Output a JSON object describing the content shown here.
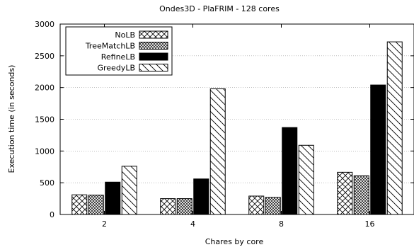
{
  "chart_data": {
    "type": "bar",
    "title": "Ondes3D - PlaFRIM - 128 cores",
    "xlabel": "Chares by core",
    "ylabel": "Execution time (in seconds)",
    "categories": [
      "2",
      "4",
      "8",
      "16"
    ],
    "ylim": [
      0,
      3000
    ],
    "yticks": [
      0,
      500,
      1000,
      1500,
      2000,
      2500,
      3000
    ],
    "grid": "horizontal dotted",
    "legend_position": "top-left",
    "series": [
      {
        "name": "NoLB",
        "pattern": "crosshatch",
        "values": [
          310,
          250,
          290,
          665
        ]
      },
      {
        "name": "TreeMatchLB",
        "pattern": "dense-crosshatch",
        "values": [
          305,
          250,
          270,
          610
        ]
      },
      {
        "name": "RefineLB",
        "pattern": "solid",
        "values": [
          510,
          560,
          1370,
          2040
        ]
      },
      {
        "name": "GreedyLB",
        "pattern": "backslash-hatch",
        "values": [
          760,
          1980,
          1090,
          2720
        ]
      }
    ]
  }
}
